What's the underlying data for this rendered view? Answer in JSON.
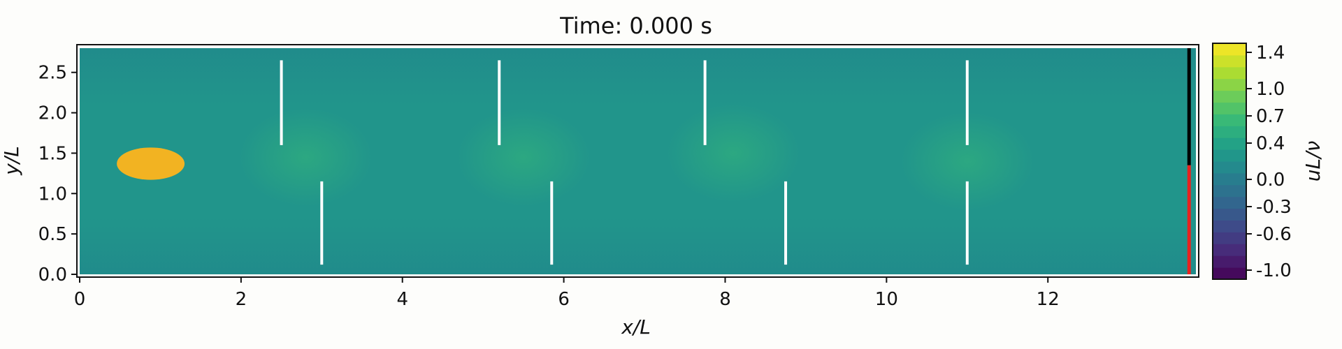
{
  "chart_data": {
    "type": "heatmap",
    "title": "Time: 0.000 s",
    "xlabel": "x/L",
    "ylabel": "y/L",
    "xlim": [
      0,
      13.8
    ],
    "ylim": [
      0,
      2.8
    ],
    "xticks": [
      0,
      2,
      4,
      6,
      8,
      10,
      12
    ],
    "yticks": [
      0.0,
      0.5,
      1.0,
      1.5,
      2.0,
      2.5
    ],
    "grid": false,
    "background_value": 0.25,
    "field_blobs": [
      {
        "x": 2.8,
        "y": 1.45,
        "value": 0.5
      },
      {
        "x": 5.5,
        "y": 1.45,
        "value": 0.55
      },
      {
        "x": 8.1,
        "y": 1.5,
        "value": 0.45
      },
      {
        "x": 11.0,
        "y": 1.4,
        "value": 0.45
      }
    ],
    "obstacles": [
      {
        "x": 2.5,
        "y0": 1.6,
        "y1": 2.65
      },
      {
        "x": 5.2,
        "y0": 1.6,
        "y1": 2.65
      },
      {
        "x": 7.75,
        "y0": 1.6,
        "y1": 2.65
      },
      {
        "x": 11.0,
        "y0": 1.6,
        "y1": 2.65
      },
      {
        "x": 3.0,
        "y0": 0.12,
        "y1": 1.15
      },
      {
        "x": 5.85,
        "y0": 0.12,
        "y1": 1.15
      },
      {
        "x": 8.75,
        "y0": 0.12,
        "y1": 1.15
      },
      {
        "x": 11.0,
        "y0": 0.12,
        "y1": 1.15
      }
    ],
    "particle": {
      "cx": 0.88,
      "cy": 1.37,
      "rx": 0.42,
      "ry": 0.2,
      "color": "#f2b322"
    },
    "right_boundary": {
      "x": 13.75,
      "red_y": [
        0,
        1.35
      ],
      "black_y": [
        1.35,
        2.8
      ]
    },
    "colorbar": {
      "label": "uL/ν",
      "ticks": [
        "1.4",
        "1.0",
        "0.7",
        "0.4",
        "0.0",
        "-0.3",
        "-0.6",
        "-1.0"
      ],
      "vmin": -1.1,
      "vmax": 1.5,
      "colormap": "viridis"
    }
  }
}
